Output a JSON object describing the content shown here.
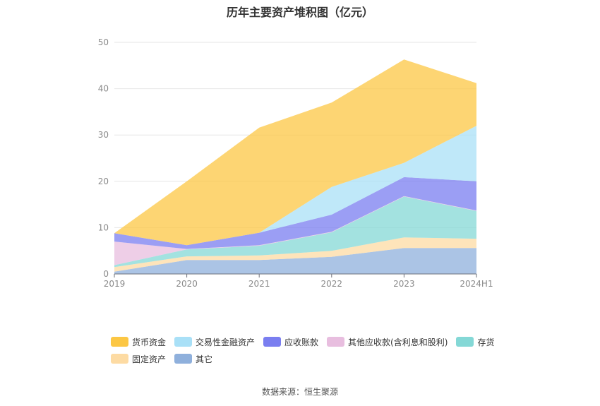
{
  "chart_data": {
    "type": "area",
    "stacked": true,
    "title": "历年主要资产堆积图（亿元）",
    "categories": [
      "2019",
      "2020",
      "2021",
      "2022",
      "2023",
      "2024H1"
    ],
    "ylim": [
      0,
      50
    ],
    "yticks": [
      0,
      10,
      20,
      30,
      40,
      50
    ],
    "grid": true,
    "legend_position": "bottom",
    "series": [
      {
        "name": "其它",
        "color": "#8fb0dc",
        "values": [
          0.5,
          3.0,
          3.0,
          3.7,
          5.6,
          5.6
        ]
      },
      {
        "name": "固定资产",
        "color": "#fddba3",
        "values": [
          1.0,
          0.8,
          1.0,
          1.3,
          2.3,
          2.0
        ]
      },
      {
        "name": "存货",
        "color": "#84d8d6",
        "values": [
          0.4,
          1.5,
          2.1,
          4.0,
          8.8,
          6.0
        ]
      },
      {
        "name": "其他应收款(含利息和股利)",
        "color": "#e8bedf",
        "values": [
          5.1,
          0.1,
          0.1,
          0.1,
          0.1,
          0.1
        ]
      },
      {
        "name": "应收账款",
        "color": "#7a7ef0",
        "values": [
          1.8,
          0.8,
          2.7,
          3.7,
          4.1,
          6.3
        ]
      },
      {
        "name": "交易性金融资产",
        "color": "#a9e0f7",
        "values": [
          0.0,
          0.0,
          0.0,
          6.0,
          3.1,
          12.0
        ]
      },
      {
        "name": "货币资金",
        "color": "#fcc744",
        "values": [
          0.0,
          13.8,
          22.7,
          18.2,
          22.3,
          9.2
        ]
      }
    ]
  },
  "legend_rows": [
    [
      "货币资金",
      "交易性金融资产",
      "应收账款",
      "其他应收款(含利息和股利)",
      "存货"
    ],
    [
      "固定资产",
      "其它"
    ]
  ],
  "source_text": "数据来源：恒生聚源"
}
